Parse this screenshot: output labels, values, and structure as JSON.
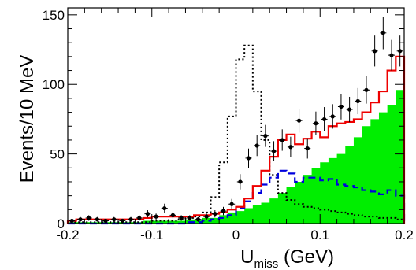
{
  "chart_data": {
    "type": "histogram",
    "xlabel": "U",
    "xlabel_subscript": "miss",
    "xlabel_unit": "(GeV)",
    "ylabel": "Events/10 MeV",
    "xlim": [
      -0.2,
      0.2
    ],
    "ylim": [
      0,
      155
    ],
    "x_ticks": [
      -0.2,
      -0.1,
      0,
      0.1,
      0.2
    ],
    "x_tick_labels": [
      "-0.2",
      "-0.1",
      "0",
      "0.1",
      "0.2"
    ],
    "y_ticks": [
      0,
      50,
      100,
      150
    ],
    "y_tick_labels": [
      "0",
      "50",
      "100",
      "150"
    ],
    "grid": false,
    "legend": "none",
    "bin_width": 0.01,
    "bin_edges_start": -0.2,
    "series": [
      {
        "kind": "filled-histogram",
        "color": "#00ee00",
        "values": [
          1,
          1,
          1,
          1,
          1,
          1,
          1,
          1,
          1,
          2,
          2,
          2,
          2,
          2,
          3,
          3,
          4,
          4,
          6,
          8,
          9,
          11,
          13,
          15,
          18,
          22,
          26,
          30,
          35,
          40,
          44,
          47,
          50,
          56,
          62,
          70,
          75,
          80,
          85,
          96
        ]
      },
      {
        "kind": "dashed-histogram",
        "color": "#0000dd",
        "values": [
          0,
          0,
          0,
          0,
          0,
          0,
          0,
          0,
          0,
          0,
          0,
          0,
          0,
          0,
          1,
          1,
          2,
          3,
          4,
          6,
          11,
          16,
          22,
          28,
          33,
          38,
          36,
          30,
          33,
          33,
          31,
          32,
          28,
          27,
          26,
          24,
          23,
          21,
          24,
          20
        ]
      },
      {
        "kind": "dotted-histogram",
        "color": "#000000",
        "values": [
          1,
          1,
          1,
          1,
          1,
          1,
          1,
          1,
          1,
          1,
          2,
          2,
          2,
          3,
          4,
          5,
          8,
          19,
          44,
          77,
          118,
          128,
          95,
          60,
          35,
          22,
          17,
          14,
          12,
          11,
          10,
          9,
          8,
          7,
          6,
          5,
          5,
          4,
          4,
          3
        ]
      },
      {
        "kind": "solid-histogram",
        "color": "#ee0000",
        "values": [
          2,
          3,
          3,
          3,
          3,
          3,
          3,
          3,
          3,
          4,
          5,
          5,
          5,
          5,
          5,
          6,
          6,
          7,
          8,
          10,
          12,
          18,
          27,
          38,
          48,
          60,
          64,
          57,
          61,
          66,
          62,
          70,
          72,
          73,
          75,
          80,
          87,
          95,
          110,
          120
        ]
      },
      {
        "kind": "data-points",
        "color": "#000000",
        "x": [
          -0.195,
          -0.185,
          -0.175,
          -0.165,
          -0.155,
          -0.145,
          -0.135,
          -0.125,
          -0.115,
          -0.105,
          -0.095,
          -0.085,
          -0.075,
          -0.065,
          -0.055,
          -0.045,
          -0.035,
          -0.025,
          -0.015,
          -0.005,
          0.005,
          0.015,
          0.025,
          0.035,
          0.045,
          0.055,
          0.065,
          0.075,
          0.085,
          0.095,
          0.105,
          0.115,
          0.125,
          0.135,
          0.145,
          0.155,
          0.165,
          0.175,
          0.185,
          0.195
        ],
        "y": [
          2,
          3,
          4,
          3,
          2,
          3,
          2,
          3,
          4,
          7,
          5,
          11,
          6,
          4,
          4,
          3,
          5,
          7,
          9,
          14,
          30,
          47,
          56,
          63,
          52,
          60,
          55,
          74,
          54,
          72,
          75,
          77,
          84,
          82,
          88,
          96,
          124,
          137,
          121,
          124
        ],
        "err": [
          1.4,
          1.7,
          2,
          1.7,
          1.4,
          1.7,
          1.4,
          1.7,
          2,
          2.6,
          2.2,
          3.3,
          2.4,
          2,
          2,
          1.7,
          2.2,
          2.6,
          3,
          3.7,
          5.5,
          6.9,
          7.5,
          7.9,
          7.2,
          7.7,
          7.4,
          8.6,
          7.3,
          8.5,
          8.7,
          8.8,
          9.2,
          9.1,
          9.4,
          9.8,
          11.1,
          11.7,
          11,
          11.1
        ]
      }
    ]
  }
}
